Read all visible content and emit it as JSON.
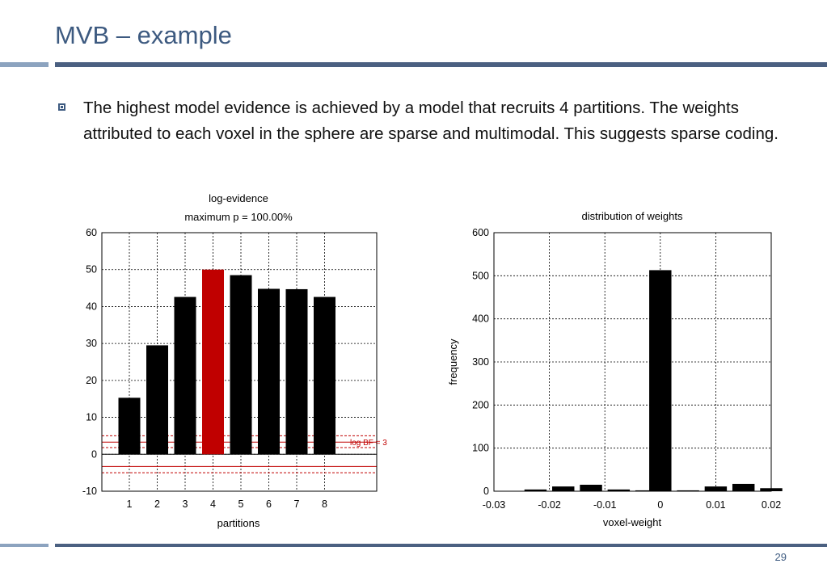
{
  "slide": {
    "title": "MVB – example",
    "bullet": "The highest model evidence is achieved by a model that recruits 4 partitions. The weights attributed to each voxel in the sphere are sparse and multimodal. This suggests sparse coding.",
    "page_number": "29"
  },
  "colors": {
    "title": "#3d5a80",
    "rule": "#4b6081",
    "bar": "#000000",
    "highlight_bar": "#c00000",
    "bf_line": "#c00000"
  },
  "chart_data": [
    {
      "type": "bar",
      "title": "log-evidence",
      "subtitle": "maximum p = 100.00%",
      "xlabel": "partitions",
      "ylabel": "",
      "categories": [
        "1",
        "2",
        "3",
        "4",
        "5",
        "6",
        "7",
        "8"
      ],
      "values": [
        15.3,
        29.5,
        42.6,
        50.0,
        48.5,
        44.8,
        44.7,
        42.6
      ],
      "highlight_index": 3,
      "ylim": [
        -10,
        60
      ],
      "yticks": [
        "-10",
        "0",
        "10",
        "20",
        "30",
        "40",
        "50",
        "60"
      ],
      "grid": true,
      "annotation": {
        "label": "log BF = 3",
        "center_line": 3.3,
        "dashed_offsets": [
          5.0,
          1.8
        ],
        "lower_lines": [
          -3.3,
          -5.0
        ]
      }
    },
    {
      "type": "bar",
      "title": "distribution of weights",
      "xlabel": "voxel-weight",
      "ylabel": "frequency",
      "bins": [
        -0.0225,
        -0.0175,
        -0.0125,
        -0.0075,
        -0.0025,
        0,
        0.005,
        0.01,
        0.015,
        0.02
      ],
      "bin_width": 0.004,
      "values": [
        4,
        11,
        15,
        4,
        2,
        513,
        2,
        11,
        17,
        7
      ],
      "xlim": [
        -0.03,
        0.02
      ],
      "ylim": [
        0,
        600
      ],
      "xticks": [
        "-0.03",
        "-0.02",
        "-0.01",
        "0",
        "0.01",
        "0.02"
      ],
      "yticks": [
        "0",
        "100",
        "200",
        "300",
        "400",
        "500",
        "600"
      ],
      "grid": true
    }
  ]
}
